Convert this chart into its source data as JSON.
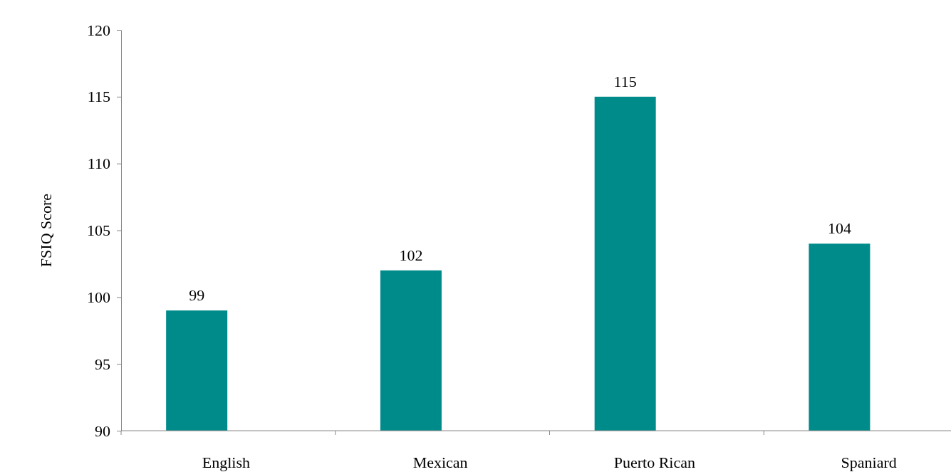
{
  "chart_data": {
    "type": "bar",
    "ylabel": "FSIQ Score",
    "categories": [
      "English",
      "Mexican",
      "Puerto Rican",
      "Spaniard"
    ],
    "values": [
      99,
      102,
      115,
      104
    ],
    "color": "#008b8b",
    "ylim": [
      90,
      120
    ],
    "yticks": [
      90,
      95,
      100,
      105,
      110,
      115,
      120
    ],
    "data_labels": true
  }
}
